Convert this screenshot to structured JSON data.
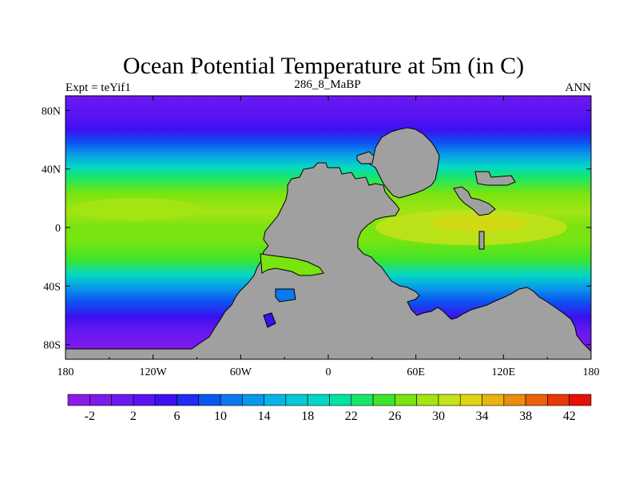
{
  "chart_data": {
    "type": "heatmap",
    "title": "Ocean Potential Temperature at 5m (in C)",
    "subtitle_left": "Expt = teYif1",
    "subtitle_center": "286_8_MaBP",
    "subtitle_right": "ANN",
    "x_axis": {
      "range": [
        -180,
        180
      ],
      "ticks": [
        {
          "value": -180,
          "label": "180"
        },
        {
          "value": -120,
          "label": "120W"
        },
        {
          "value": -60,
          "label": "60W"
        },
        {
          "value": 0,
          "label": "0"
        },
        {
          "value": 60,
          "label": "60E"
        },
        {
          "value": 120,
          "label": "120E"
        },
        {
          "value": 180,
          "label": "180"
        }
      ]
    },
    "y_axis": {
      "range": [
        -90,
        90
      ],
      "ticks": [
        {
          "value": 80,
          "label": "80N"
        },
        {
          "value": 40,
          "label": "40N"
        },
        {
          "value": 0,
          "label": "0"
        },
        {
          "value": -40,
          "label": "40S"
        },
        {
          "value": -80,
          "label": "80S"
        }
      ]
    },
    "colorbar": {
      "levels": [
        -4,
        -2,
        0,
        2,
        4,
        6,
        8,
        10,
        12,
        14,
        16,
        18,
        20,
        22,
        24,
        26,
        28,
        30,
        32,
        34,
        36,
        38,
        40,
        42,
        44
      ],
      "labels": [
        {
          "value": -2,
          "label": "-2"
        },
        {
          "value": 2,
          "label": "2"
        },
        {
          "value": 6,
          "label": "6"
        },
        {
          "value": 10,
          "label": "10"
        },
        {
          "value": 14,
          "label": "14"
        },
        {
          "value": 18,
          "label": "18"
        },
        {
          "value": 22,
          "label": "22"
        },
        {
          "value": 26,
          "label": "26"
        },
        {
          "value": 30,
          "label": "30"
        },
        {
          "value": 34,
          "label": "34"
        },
        {
          "value": 38,
          "label": "38"
        },
        {
          "value": 42,
          "label": "42"
        }
      ],
      "colors": [
        "#8b1ce6",
        "#7d1aec",
        "#6c18f0",
        "#5614f2",
        "#3c10f0",
        "#1f2ef0",
        "#0b55f0",
        "#0a78ee",
        "#0a98ea",
        "#08b4e4",
        "#06c8d8",
        "#04d8c4",
        "#04e2a0",
        "#18e66a",
        "#40e428",
        "#78e410",
        "#a4e414",
        "#c6e21a",
        "#e0d414",
        "#e8b40e",
        "#ea8c0c",
        "#ea620a",
        "#e83808",
        "#e61006"
      ]
    },
    "land_color": "#a0a0a0",
    "field_description": "Sea-surface potential temperature: roughly -2 to 0 C at high latitudes rising to about 30-32 C in the tropics; landmass shown in grey (Pangaea supercontinent)."
  },
  "colors": {
    "background": "#ffffff",
    "land": "#a0a0a0",
    "frame": "#000000"
  }
}
